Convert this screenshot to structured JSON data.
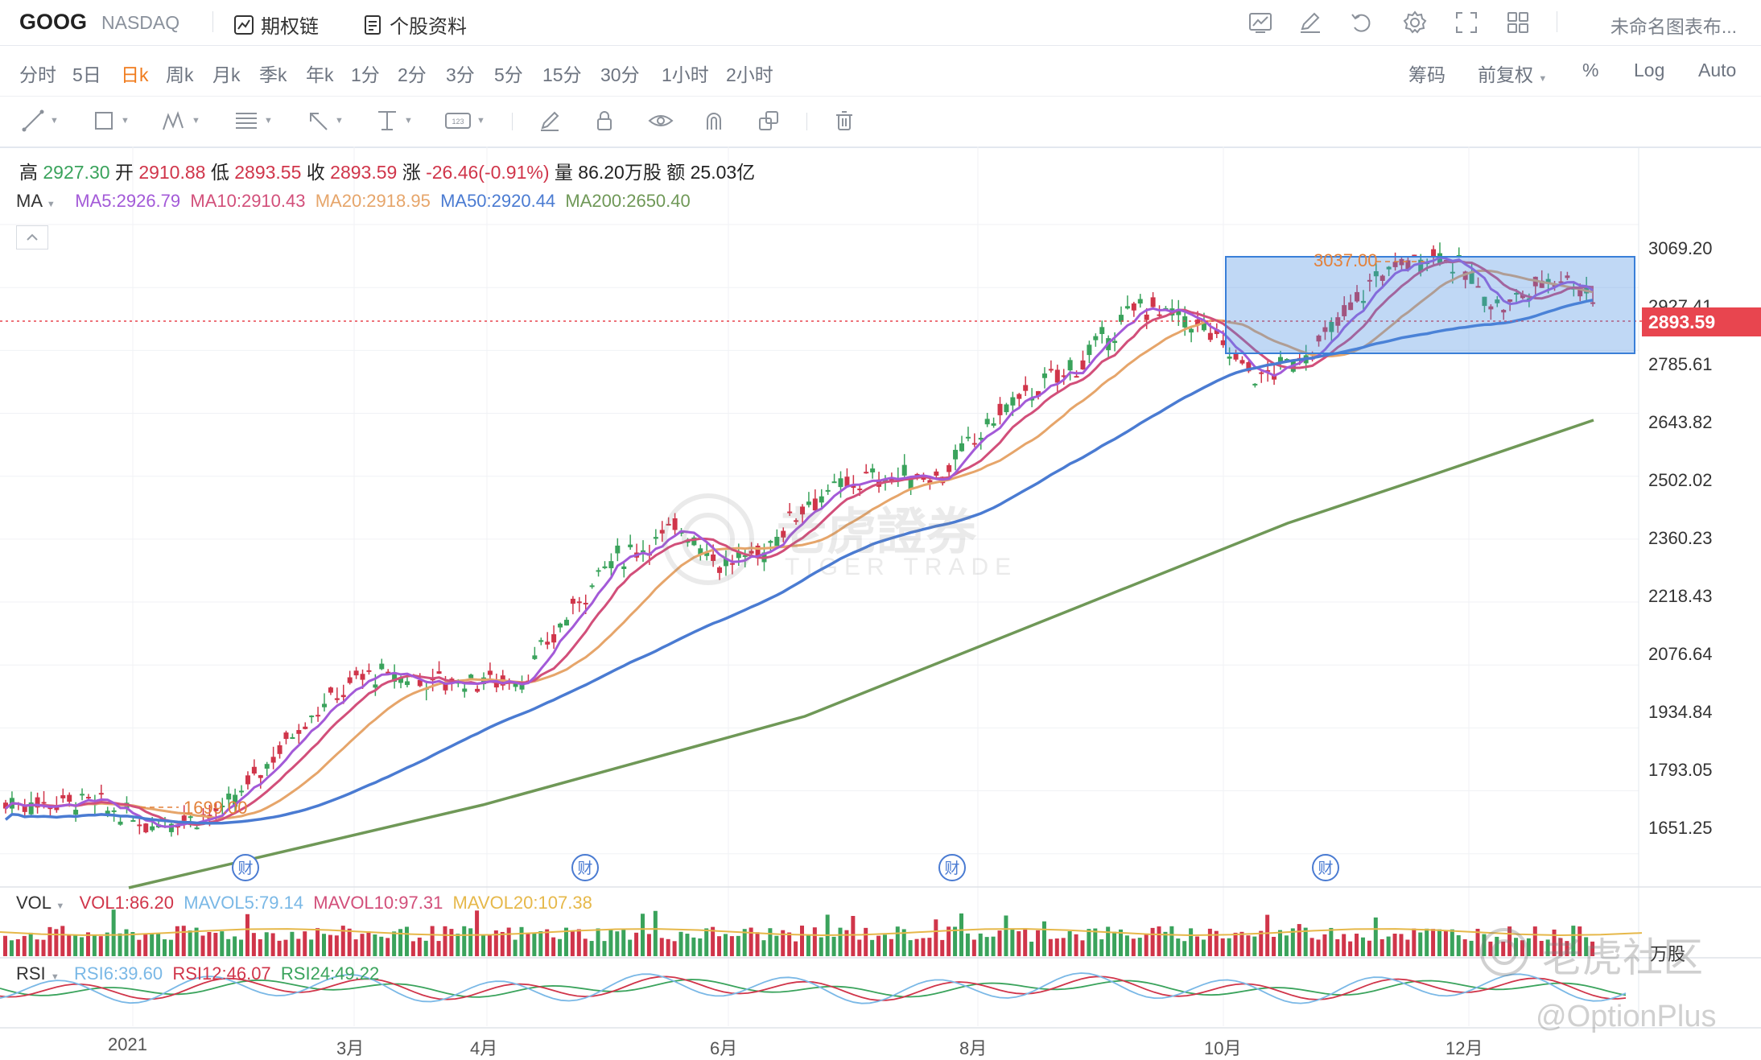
{
  "header": {
    "ticker": "GOOG",
    "exchange": "NASDAQ",
    "options_chain": "期权链",
    "stock_profile": "个股资料",
    "chart_name": "未命名图表布..."
  },
  "periods": [
    "分时",
    "5日",
    "日k",
    "周k",
    "月k",
    "季k",
    "年k",
    "1分",
    "2分",
    "3分",
    "5分",
    "15分",
    "30分",
    "1小时",
    "2小时"
  ],
  "active_period": "日k",
  "period_right": {
    "chips": "筹码",
    "adjust": "前复权",
    "percent": "%",
    "log": "Log",
    "auto": "Auto"
  },
  "quote": {
    "high_label": "高",
    "high": "2927.30",
    "open_label": "开",
    "open": "2910.88",
    "low_label": "低",
    "low": "2893.55",
    "close_label": "收",
    "close": "2893.59",
    "change_label": "涨",
    "change": "-26.46(-0.91%)",
    "volume_label": "量",
    "volume": "86.20万股",
    "amount_label": "额",
    "amount": "25.03亿"
  },
  "ma": {
    "label": "MA",
    "ma5": "MA5:2926.79",
    "ma10": "MA10:2910.43",
    "ma20": "MA20:2918.95",
    "ma50": "MA50:2920.44",
    "ma200": "MA200:2650.40"
  },
  "vol": {
    "label": "VOL",
    "vol1": "VOL1:86.20",
    "mavol5": "MAVOL5:79.14",
    "mavol10": "MAVOL10:97.31",
    "mavol20": "MAVOL20:107.38",
    "unit": "万股"
  },
  "rsi": {
    "label": "RSI",
    "rsi6": "RSI6:39.60",
    "rsi12": "RSI12:46.07",
    "rsi24": "RSI24:49.22"
  },
  "price_tag": "2893.59",
  "annotations": {
    "high_mark": "3037.00",
    "low_mark": "1699.00",
    "earnings": "财"
  },
  "watermark": {
    "main": "老虎證券",
    "sub": "TIGER TRADE",
    "community": "老虎社区",
    "user": "@OptionPlus"
  },
  "colors": {
    "up": "#3aa35c",
    "down": "#d0354a",
    "ma5": "#a35ad8",
    "ma10": "#d24f7a",
    "ma20": "#e6a56a",
    "ma50": "#4a7bd2",
    "ma200": "#6f9857",
    "active": "#f07b1c"
  },
  "chart_data": {
    "type": "candlestick",
    "y_axis_ticks": [
      "3069.20",
      "2927.41",
      "2785.61",
      "2643.82",
      "2502.02",
      "2360.23",
      "2218.43",
      "2076.64",
      "1934.84",
      "1793.05",
      "1651.25"
    ],
    "x_axis_ticks": [
      "2021",
      "3月",
      "4月",
      "6月",
      "8月",
      "10月",
      "12月"
    ],
    "series": [
      {
        "name": "MA5",
        "last": 2926.79
      },
      {
        "name": "MA10",
        "last": 2910.43
      },
      {
        "name": "MA20",
        "last": 2918.95
      },
      {
        "name": "MA50",
        "last": 2920.44
      },
      {
        "name": "MA200",
        "last": 2650.4
      }
    ],
    "last_close": 2893.59,
    "period_high": 3037.0,
    "period_low": 1699.0
  }
}
